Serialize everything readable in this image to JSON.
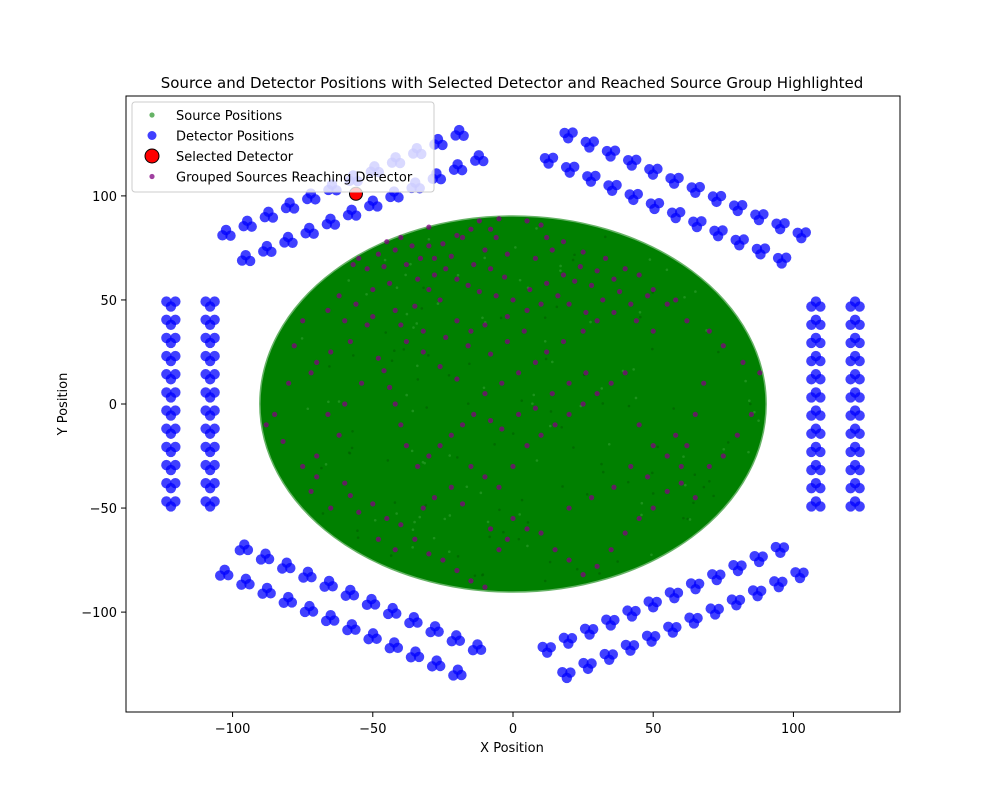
{
  "chart_data": {
    "type": "scatter",
    "title": "Source and Detector Positions with Selected Detector and Reached Source Group Highlighted",
    "xlabel": "X Position",
    "ylabel": "Y Position",
    "xlim": [
      -138,
      138
    ],
    "ylim": [
      -148,
      148
    ],
    "xticks": [
      -100,
      -50,
      0,
      50,
      100
    ],
    "xtick_labels": [
      "−100",
      "−50",
      "0",
      "50",
      "100"
    ],
    "yticks": [
      -100,
      -50,
      0,
      50,
      100
    ],
    "ytick_labels": [
      "−100",
      "−50",
      "0",
      "50",
      "100"
    ],
    "grid": false,
    "legend_position": "upper-left",
    "colors": {
      "source": "#008000",
      "detector": "#0000ff",
      "selected": "#ff0000",
      "grouped": "#800080"
    },
    "source_region": {
      "shape": "disk",
      "center": [
        0,
        0
      ],
      "radius_x": 90,
      "radius_y": 90
    },
    "detector_modules": {
      "count": 6,
      "inner_radius": 105,
      "outer_radius": 122,
      "half_width": 52,
      "angles_deg": [
        0,
        60,
        120,
        180,
        240,
        300
      ],
      "tiles_per_row": 12,
      "rows": 2
    },
    "series": [
      {
        "name": "Source Positions",
        "marker": "circle-small",
        "color": "#008000",
        "points": []
      },
      {
        "name": "Detector Positions",
        "marker": "circle",
        "color": "#0000ff",
        "points": []
      },
      {
        "name": "Selected Detector",
        "marker": "circle-large",
        "color": "#ff0000",
        "points": [
          [
            -56,
            101
          ]
        ]
      },
      {
        "name": "Grouped Sources Reaching Detector",
        "marker": "circle-small",
        "color": "#800080",
        "points": [
          [
            -5,
            89
          ],
          [
            -12,
            88
          ],
          [
            -30,
            85
          ],
          [
            -40,
            80
          ],
          [
            -45,
            78
          ],
          [
            -36,
            76
          ],
          [
            -30,
            76
          ],
          [
            -25,
            77
          ],
          [
            -18,
            80
          ],
          [
            -6,
            80
          ],
          [
            -8,
            84
          ],
          [
            -15,
            84
          ],
          [
            -20,
            81
          ],
          [
            -42,
            74
          ],
          [
            -48,
            72
          ],
          [
            -55,
            70
          ],
          [
            -57,
            67
          ],
          [
            -52,
            65
          ],
          [
            -46,
            66
          ],
          [
            -38,
            67
          ],
          [
            -33,
            70
          ],
          [
            -28,
            70
          ],
          [
            -22,
            71
          ],
          [
            -14,
            67
          ],
          [
            -8,
            65
          ],
          [
            -3,
            61
          ],
          [
            5,
            88
          ],
          [
            10,
            86
          ],
          [
            12,
            80
          ],
          [
            18,
            78
          ],
          [
            25,
            73
          ],
          [
            33,
            70
          ],
          [
            40,
            65
          ],
          [
            45,
            62
          ],
          [
            50,
            55
          ],
          [
            55,
            48
          ],
          [
            36,
            60
          ],
          [
            28,
            57
          ],
          [
            22,
            59
          ],
          [
            16,
            52
          ],
          [
            10,
            48
          ],
          [
            5,
            45
          ],
          [
            -2,
            42
          ],
          [
            -10,
            38
          ],
          [
            -15,
            35
          ],
          [
            -20,
            40
          ],
          [
            -26,
            50
          ],
          [
            -30,
            55
          ],
          [
            -35,
            47
          ],
          [
            -42,
            45
          ],
          [
            -50,
            42
          ],
          [
            -52,
            38
          ],
          [
            -60,
            40
          ],
          [
            -58,
            30
          ],
          [
            -65,
            25
          ],
          [
            -70,
            20
          ],
          [
            -72,
            15
          ],
          [
            -75,
            40
          ],
          [
            -78,
            28
          ],
          [
            -80,
            10
          ],
          [
            -85,
            -5
          ],
          [
            -88,
            -10
          ],
          [
            -82,
            -18
          ],
          [
            -75,
            -30
          ],
          [
            -70,
            -35
          ],
          [
            -72,
            -42
          ],
          [
            -60,
            -38
          ],
          [
            -58,
            -44
          ],
          [
            -55,
            -52
          ],
          [
            -50,
            -48
          ],
          [
            -45,
            -55
          ],
          [
            -40,
            -58
          ],
          [
            -35,
            -65
          ],
          [
            -30,
            -72
          ],
          [
            -25,
            -75
          ],
          [
            -20,
            -80
          ],
          [
            -15,
            -85
          ],
          [
            -10,
            -88
          ],
          [
            -5,
            -70
          ],
          [
            0,
            -55
          ],
          [
            5,
            -60
          ],
          [
            10,
            -62
          ],
          [
            15,
            -70
          ],
          [
            20,
            -75
          ],
          [
            25,
            -82
          ],
          [
            30,
            -78
          ],
          [
            35,
            -70
          ],
          [
            40,
            -62
          ],
          [
            45,
            -55
          ],
          [
            50,
            -50
          ],
          [
            55,
            -42
          ],
          [
            60,
            -38
          ],
          [
            65,
            -45
          ],
          [
            70,
            -30
          ],
          [
            75,
            -25
          ],
          [
            80,
            -15
          ],
          [
            85,
            -5
          ],
          [
            88,
            15
          ],
          [
            82,
            20
          ],
          [
            75,
            28
          ],
          [
            70,
            35
          ],
          [
            62,
            40
          ],
          [
            58,
            50
          ],
          [
            48,
            52
          ],
          [
            42,
            48
          ],
          [
            36,
            44
          ],
          [
            30,
            40
          ],
          [
            25,
            35
          ],
          [
            18,
            30
          ],
          [
            12,
            25
          ],
          [
            8,
            20
          ],
          [
            2,
            15
          ],
          [
            -4,
            10
          ],
          [
            -10,
            5
          ],
          [
            -14,
            -5
          ],
          [
            -18,
            -10
          ],
          [
            -22,
            -15
          ],
          [
            -26,
            -20
          ],
          [
            -30,
            -25
          ],
          [
            -34,
            -30
          ],
          [
            -38,
            -20
          ],
          [
            -40,
            -10
          ],
          [
            -42,
            0
          ],
          [
            -44,
            8
          ],
          [
            -46,
            16
          ],
          [
            -48,
            22
          ],
          [
            -38,
            30
          ],
          [
            -32,
            25
          ],
          [
            -26,
            18
          ],
          [
            -20,
            12
          ],
          [
            -15,
            -30
          ],
          [
            -10,
            -35
          ],
          [
            -5,
            -40
          ],
          [
            0,
            -30
          ],
          [
            5,
            -20
          ],
          [
            10,
            -15
          ],
          [
            15,
            -10
          ],
          [
            20,
            -5
          ],
          [
            25,
            0
          ],
          [
            30,
            5
          ],
          [
            35,
            10
          ],
          [
            40,
            15
          ],
          [
            45,
            -10
          ],
          [
            50,
            -20
          ],
          [
            55,
            -25
          ],
          [
            60,
            -30
          ],
          [
            65,
            -5
          ],
          [
            68,
            10
          ],
          [
            -62,
            -15
          ],
          [
            -66,
            -5
          ],
          [
            -54,
            10
          ],
          [
            -60,
            0
          ],
          [
            -20,
            60
          ],
          [
            -24,
            65
          ],
          [
            -28,
            62
          ],
          [
            -34,
            60
          ],
          [
            -16,
            57
          ],
          [
            -12,
            54
          ],
          [
            -6,
            52
          ],
          [
            0,
            50
          ],
          [
            6,
            55
          ],
          [
            12,
            58
          ],
          [
            18,
            62
          ],
          [
            24,
            66
          ],
          [
            30,
            64
          ],
          [
            8,
            70
          ],
          [
            14,
            74
          ],
          [
            -2,
            72
          ],
          [
            -10,
            74
          ],
          [
            -44,
            58
          ],
          [
            -50,
            55
          ],
          [
            -56,
            48
          ],
          [
            -62,
            52
          ],
          [
            -66,
            45
          ],
          [
            -40,
            38
          ],
          [
            -32,
            35
          ],
          [
            -24,
            32
          ],
          [
            -16,
            28
          ],
          [
            -8,
            24
          ],
          [
            20,
            48
          ],
          [
            26,
            44
          ],
          [
            32,
            50
          ],
          [
            38,
            54
          ],
          [
            44,
            40
          ],
          [
            50,
            35
          ],
          [
            -70,
            -25
          ],
          [
            -65,
            -50
          ],
          [
            -48,
            -65
          ],
          [
            -42,
            -70
          ],
          [
            -32,
            -50
          ],
          [
            -28,
            -45
          ],
          [
            -22,
            -40
          ],
          [
            -18,
            -48
          ],
          [
            -8,
            -60
          ],
          [
            -2,
            -65
          ],
          [
            20,
            -50
          ],
          [
            28,
            -45
          ],
          [
            36,
            -40
          ],
          [
            42,
            -30
          ],
          [
            48,
            -35
          ],
          [
            58,
            -15
          ],
          [
            62,
            -20
          ],
          [
            -2,
            30
          ],
          [
            4,
            35
          ],
          [
            -8,
            -8
          ],
          [
            -4,
            -12
          ],
          [
            2,
            -5
          ],
          [
            8,
            -2
          ],
          [
            14,
            5
          ],
          [
            20,
            10
          ],
          [
            26,
            15
          ]
        ]
      }
    ]
  }
}
